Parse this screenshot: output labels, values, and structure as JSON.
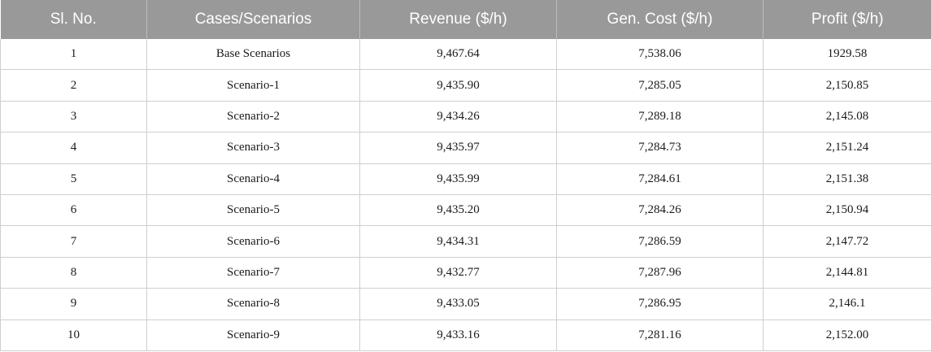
{
  "table": {
    "headers": [
      "Sl. No.",
      "Cases/Scenarios",
      "Revenue ($/h)",
      "Gen. Cost ($/h)",
      "Profit ($/h)"
    ],
    "rows": [
      [
        "1",
        "Base Scenarios",
        "9,467.64",
        "7,538.06",
        "1929.58"
      ],
      [
        "2",
        "Scenario-1",
        "9,435.90",
        "7,285.05",
        "2,150.85"
      ],
      [
        "3",
        "Scenario-2",
        "9,434.26",
        "7,289.18",
        "2,145.08"
      ],
      [
        "4",
        "Scenario-3",
        "9,435.97",
        "7,284.73",
        "2,151.24"
      ],
      [
        "5",
        "Scenario-4",
        "9,435.99",
        "7,284.61",
        "2,151.38"
      ],
      [
        "6",
        "Scenario-5",
        "9,435.20",
        "7,284.26",
        "2,150.94"
      ],
      [
        "7",
        "Scenario-6",
        "9,434.31",
        "7,286.59",
        "2,147.72"
      ],
      [
        "8",
        "Scenario-7",
        "9,432.77",
        "7,287.96",
        "2,144.81"
      ],
      [
        "9",
        "Scenario-8",
        "9,433.05",
        "7,286.95",
        "2,146.1"
      ],
      [
        "10",
        "Scenario-9",
        "9,433.16",
        "7,281.16",
        "2,152.00"
      ]
    ]
  }
}
